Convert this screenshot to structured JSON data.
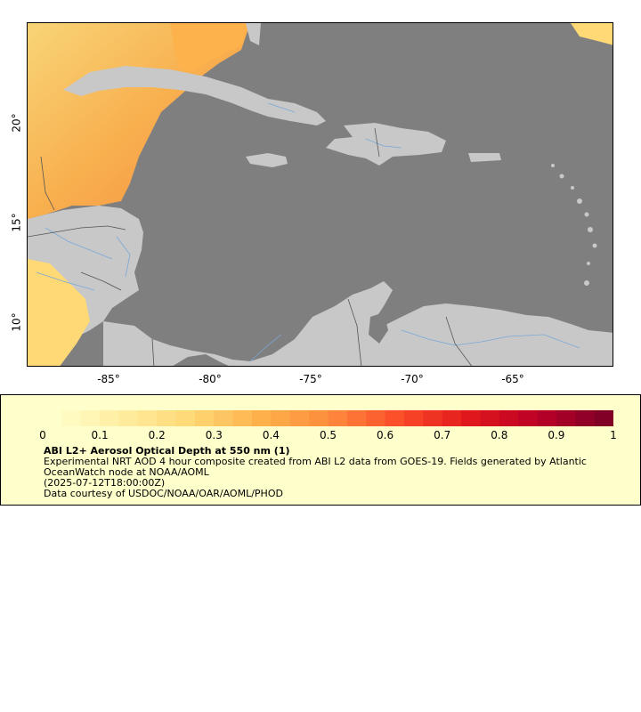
{
  "map": {
    "x_ticks": [
      {
        "value": -85,
        "label": "-85°"
      },
      {
        "value": -80,
        "label": "-80°"
      },
      {
        "value": -75,
        "label": "-75°"
      },
      {
        "value": -70,
        "label": "-70°"
      },
      {
        "value": -65,
        "label": "-65°"
      }
    ],
    "y_ticks": [
      {
        "value": 20,
        "label": "20°"
      },
      {
        "value": 15,
        "label": "15°"
      },
      {
        "value": 10,
        "label": "10°"
      }
    ],
    "extent": {
      "lon": [
        -89,
        -60
      ],
      "lat": [
        8,
        25
      ]
    },
    "colors": {
      "ocean": "#7f7f7f",
      "land": "#c8c8c8",
      "rivers": "#7aa8d8",
      "borders": "#555555"
    }
  },
  "colorbar": {
    "range": [
      0,
      1
    ],
    "tick_labels": [
      "0",
      "0.1",
      "0.2",
      "0.3",
      "0.4",
      "0.5",
      "0.6",
      "0.7",
      "0.8",
      "0.9",
      "1"
    ],
    "colors": [
      "#ffffcc",
      "#ffeda0",
      "#fed976",
      "#feb24c",
      "#fd8d3c",
      "#fc4e2a",
      "#e31a1c",
      "#bd0026",
      "#800026"
    ]
  },
  "legend": {
    "title": "ABI L2+ Aerosol Optical Depth at 550 nm (1)",
    "line1": "Experimental NRT AOD 4 hour composite created from ABI L2 data from GOES-19. Fields generated by Atlantic OceanWatch node at NOAA/AOML",
    "line2": "(2025-07-12T18:00:00Z)",
    "line3": "Data courtesy of USDOC/NOAA/OAR/AOML/PHOD"
  }
}
